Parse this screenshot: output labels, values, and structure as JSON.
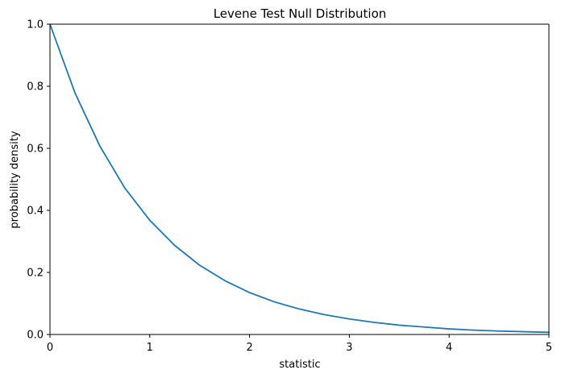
{
  "chart_data": {
    "type": "line",
    "title": "Levene Test Null Distribution",
    "xlabel": "statistic",
    "ylabel": "probability density",
    "xlim": [
      0,
      5
    ],
    "ylim": [
      0,
      1
    ],
    "x_ticks": [
      "0",
      "1",
      "2",
      "3",
      "4",
      "5"
    ],
    "y_ticks": [
      "0.0",
      "0.2",
      "0.4",
      "0.6",
      "0.8",
      "1.0"
    ],
    "grid": false,
    "legend": "none",
    "line_color": "#1f77b4",
    "series": [
      {
        "x": [
          0.0,
          0.25,
          0.5,
          0.75,
          1.0,
          1.25,
          1.5,
          1.75,
          2.0,
          2.25,
          2.5,
          2.75,
          3.0,
          3.25,
          3.5,
          3.75,
          4.0,
          4.25,
          4.5,
          4.75,
          5.0
        ],
        "y": [
          1.0,
          0.779,
          0.607,
          0.472,
          0.368,
          0.287,
          0.223,
          0.174,
          0.135,
          0.105,
          0.082,
          0.064,
          0.05,
          0.039,
          0.03,
          0.024,
          0.018,
          0.014,
          0.011,
          0.009,
          0.007
        ]
      }
    ]
  }
}
